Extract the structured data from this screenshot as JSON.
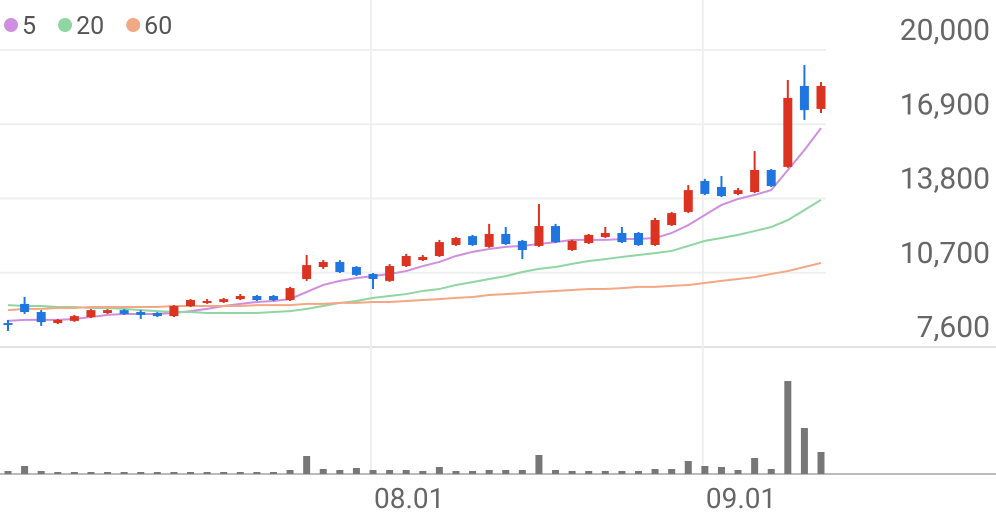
{
  "chart_data": {
    "type": "candlestick",
    "categories": [
      null,
      null,
      null,
      null,
      null,
      null,
      null,
      null,
      null,
      null,
      null,
      null,
      null,
      null,
      null,
      null,
      null,
      null,
      null,
      null,
      null,
      null,
      "08.01",
      null,
      null,
      null,
      null,
      null,
      null,
      null,
      null,
      null,
      null,
      null,
      null,
      null,
      null,
      null,
      null,
      null,
      null,
      null,
      "09.01",
      null,
      null,
      null,
      null,
      null,
      null,
      null
    ],
    "open": [
      8600,
      9400,
      9060,
      8600,
      8690,
      8850,
      9020,
      9140,
      9060,
      9020,
      8890,
      9310,
      9440,
      9480,
      9600,
      9730,
      9730,
      9560,
      10440,
      10940,
      11150,
      10940,
      10650,
      10360,
      10980,
      11230,
      11400,
      11860,
      12230,
      11780,
      12320,
      12030,
      11820,
      12650,
      11650,
      11940,
      12190,
      12360,
      12360,
      11860,
      12690,
      13240,
      14530,
      14280,
      13990,
      14070,
      14990,
      15120,
      18500,
      17540
    ],
    "high": [
      8730,
      9690,
      9140,
      8770,
      8940,
      9180,
      9180,
      9180,
      9140,
      9060,
      9350,
      9600,
      9600,
      9650,
      9810,
      9770,
      9770,
      10110,
      11440,
      11230,
      11230,
      10980,
      10690,
      11060,
      11490,
      11440,
      12070,
      12190,
      12280,
      12740,
      12610,
      12070,
      13570,
      12740,
      12070,
      12320,
      12610,
      12610,
      12400,
      12990,
      13240,
      14360,
      14620,
      14740,
      14240,
      15780,
      15030,
      18750,
      19370,
      18660
    ],
    "low": [
      8270,
      8980,
      8480,
      8560,
      8650,
      8810,
      8980,
      8940,
      8770,
      8850,
      8850,
      9270,
      9400,
      9440,
      9560,
      9520,
      9520,
      9520,
      10360,
      10860,
      10690,
      10560,
      10020,
      10320,
      10940,
      11190,
      11360,
      11820,
      11820,
      11740,
      11860,
      11270,
      11780,
      11940,
      11610,
      11900,
      12150,
      11940,
      11820,
      11820,
      12650,
      13190,
      13940,
      13860,
      13940,
      14030,
      14280,
      15080,
      17080,
      17370
    ],
    "close": [
      8520,
      9060,
      8640,
      8730,
      8890,
      9140,
      9140,
      8980,
      8940,
      8890,
      9310,
      9560,
      9520,
      9600,
      9730,
      9560,
      9560,
      10060,
      11020,
      11150,
      10730,
      10610,
      10440,
      10980,
      11400,
      11360,
      11980,
      12150,
      11860,
      12320,
      11900,
      11650,
      12650,
      11980,
      12030,
      12280,
      12360,
      11980,
      11860,
      12900,
      13190,
      14150,
      13990,
      13900,
      14150,
      14990,
      14320,
      18000,
      17490,
      18500
    ],
    "up_color": "#dc3220",
    "down_color": "#1f76e0",
    "series": [
      {
        "name": "5",
        "color": "#cf8fe0",
        "values": [
          8690,
          8730,
          8730,
          8730,
          8770,
          8850,
          8940,
          8980,
          8980,
          8980,
          9020,
          9100,
          9190,
          9310,
          9400,
          9480,
          9520,
          9600,
          9900,
          10190,
          10360,
          10480,
          10560,
          10650,
          10770,
          10980,
          11150,
          11400,
          11570,
          11690,
          11780,
          11820,
          11900,
          11980,
          12070,
          12070,
          12070,
          12110,
          12110,
          12150,
          12360,
          12690,
          13110,
          13530,
          13780,
          13950,
          14150,
          14990,
          15820,
          16740
        ]
      },
      {
        "name": "20",
        "color": "#8fd6a2",
        "values": [
          9350,
          9310,
          9310,
          9270,
          9270,
          9230,
          9230,
          9190,
          9140,
          9100,
          9060,
          9060,
          9020,
          9020,
          9020,
          9020,
          9060,
          9100,
          9190,
          9310,
          9440,
          9520,
          9650,
          9730,
          9810,
          9940,
          10020,
          10190,
          10310,
          10440,
          10560,
          10730,
          10860,
          10940,
          11070,
          11190,
          11270,
          11360,
          11440,
          11520,
          11610,
          11820,
          12030,
          12150,
          12280,
          12440,
          12610,
          12900,
          13320,
          13740
        ]
      },
      {
        "name": "60",
        "color": "#f2a884",
        "values": [
          9140,
          9190,
          9190,
          9230,
          9230,
          9270,
          9270,
          9270,
          9270,
          9270,
          9310,
          9310,
          9310,
          9310,
          9310,
          9350,
          9350,
          9350,
          9400,
          9400,
          9440,
          9440,
          9480,
          9480,
          9520,
          9560,
          9600,
          9650,
          9690,
          9770,
          9810,
          9850,
          9900,
          9940,
          9980,
          10020,
          10020,
          10060,
          10110,
          10110,
          10150,
          10190,
          10270,
          10360,
          10440,
          10520,
          10650,
          10770,
          10940,
          11110
        ]
      }
    ],
    "volume": {
      "color": "#777777",
      "values": [
        3,
        8,
        3,
        2,
        2,
        2,
        2,
        2,
        2,
        2,
        2,
        2,
        2,
        2,
        2,
        2,
        2,
        4,
        18,
        5,
        4,
        6,
        4,
        4,
        4,
        3,
        7,
        3,
        3,
        4,
        4,
        4,
        19,
        4,
        3,
        3,
        3,
        3,
        3,
        5,
        5,
        13,
        8,
        7,
        4,
        16,
        5,
        93,
        46,
        22
      ]
    },
    "ylim": [
      7600,
      20000
    ],
    "yticks": [
      {
        "value": 7600,
        "label": "7,600"
      },
      {
        "value": 10700,
        "label": "10,700"
      },
      {
        "value": 13800,
        "label": "13,800"
      },
      {
        "value": 16900,
        "label": "16,900"
      },
      {
        "value": 20000,
        "label": "20,000"
      }
    ],
    "grid": true
  }
}
